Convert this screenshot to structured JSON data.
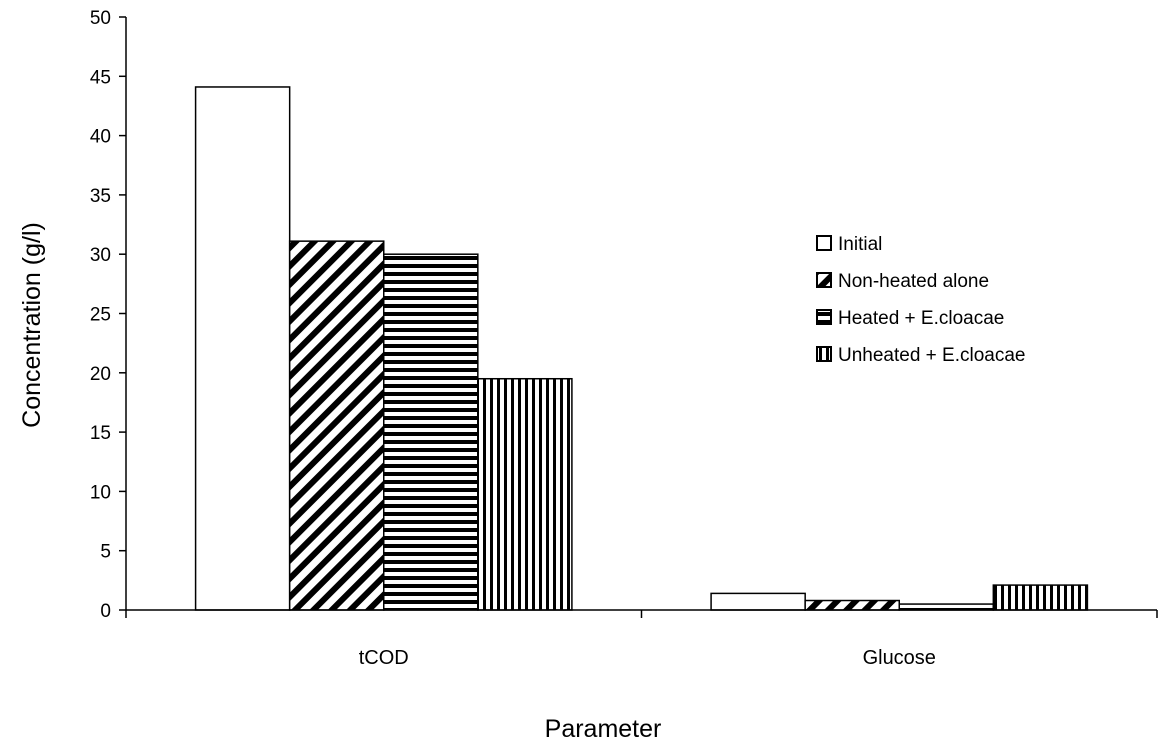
{
  "chart_data": {
    "type": "bar",
    "title": "",
    "xlabel": "Parameter",
    "ylabel": "Concentration (g/l)",
    "ylim": [
      0,
      50
    ],
    "yticks": [
      0,
      5,
      10,
      15,
      20,
      25,
      30,
      35,
      40,
      45,
      50
    ],
    "categories": [
      "tCOD",
      "Glucose"
    ],
    "grid": false,
    "legend_position": "right",
    "series": [
      {
        "name": "Initial",
        "values": [
          44.1,
          1.4
        ],
        "pattern": "solid-white"
      },
      {
        "name": "Non-heated alone",
        "values": [
          31.1,
          0.8
        ],
        "pattern": "diagonal-stripes"
      },
      {
        "name": "Heated + E.cloacae",
        "values": [
          30.0,
          0.5
        ],
        "pattern": "horizontal-stripes"
      },
      {
        "name": "Unheated + E.cloacae",
        "values": [
          19.5,
          2.1
        ],
        "pattern": "vertical-stripes"
      }
    ]
  }
}
